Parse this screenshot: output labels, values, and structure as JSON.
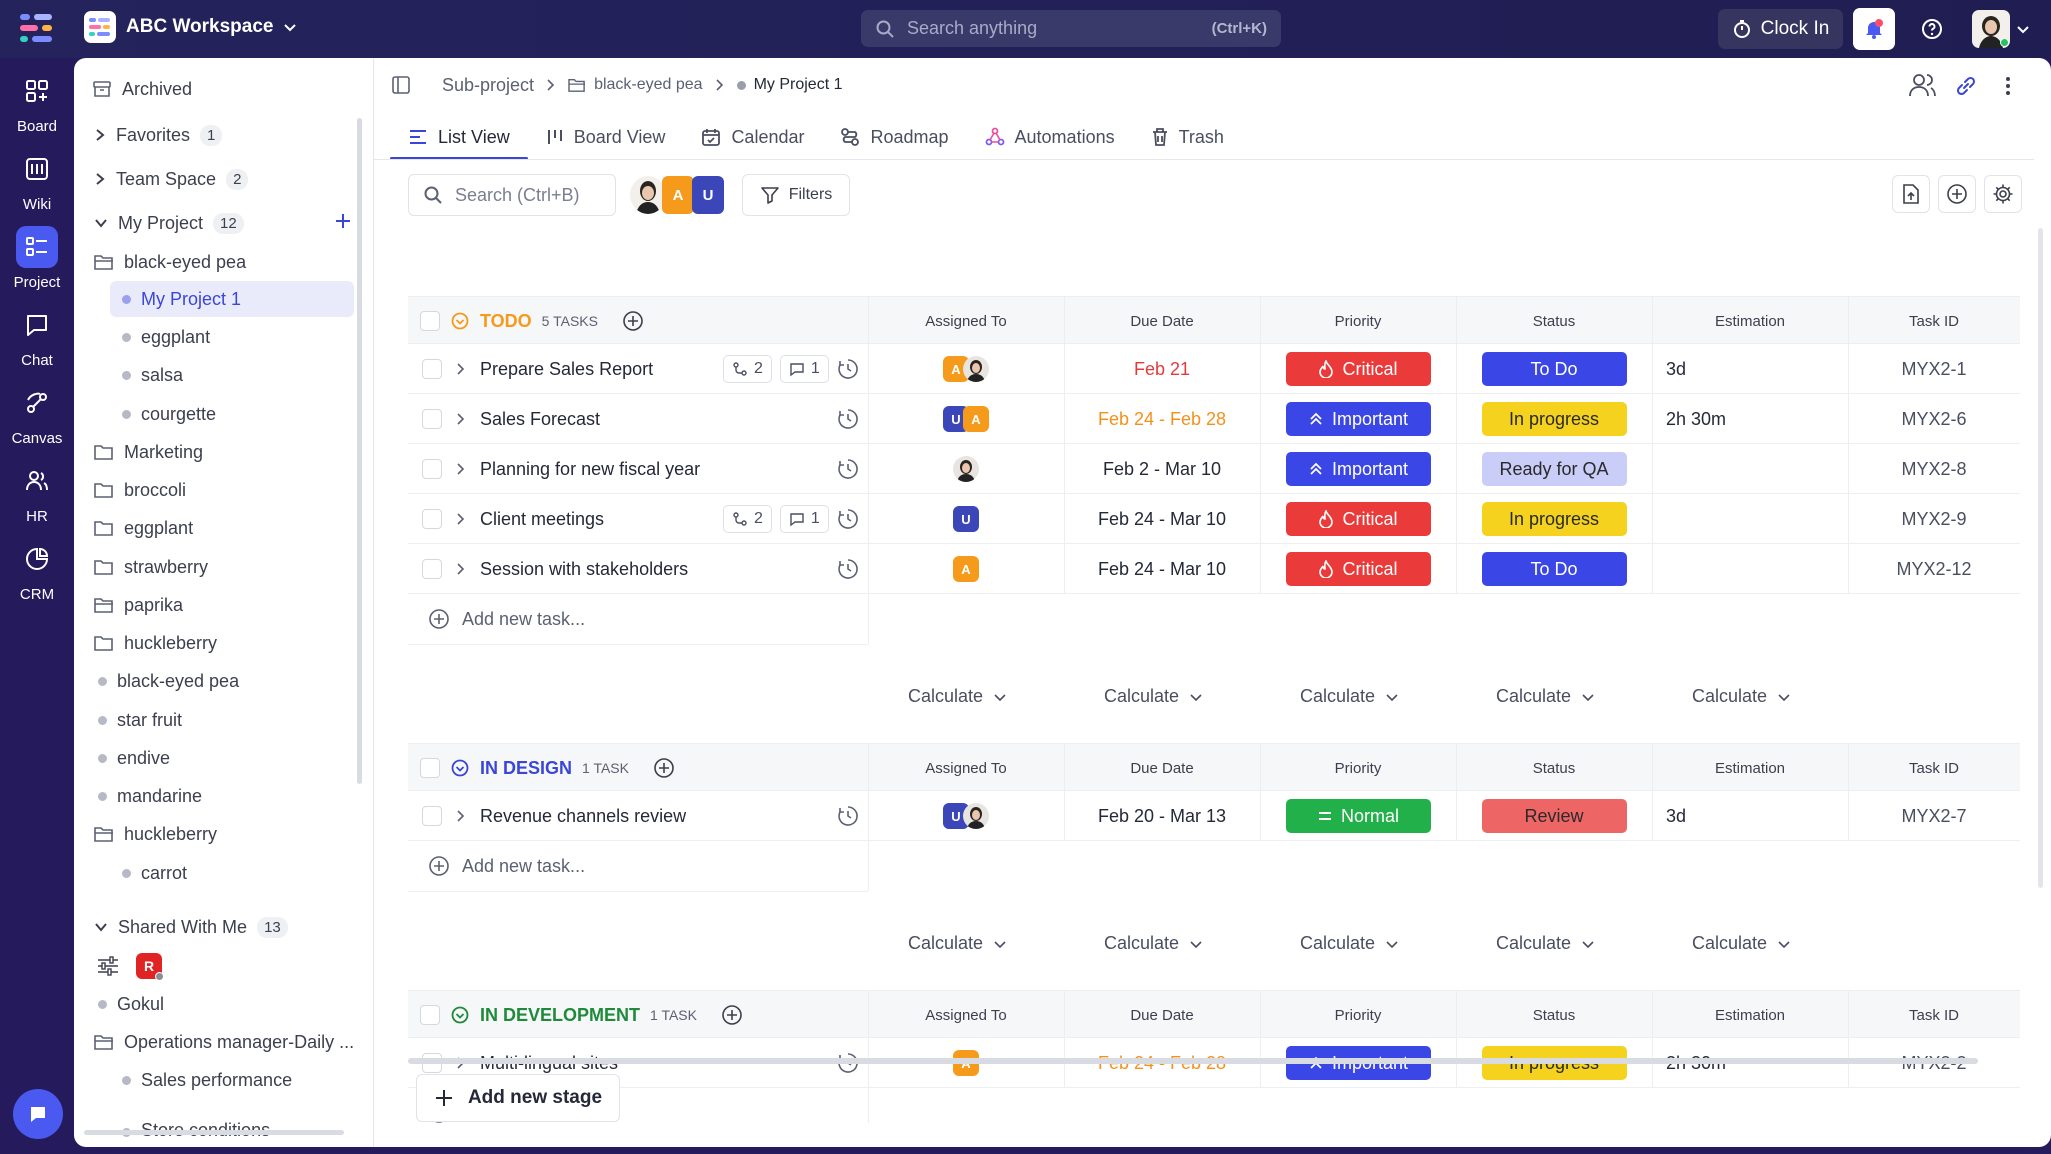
{
  "topbar": {
    "workspace": "ABC Workspace",
    "search_placeholder": "Search anything",
    "search_shortcut": "(Ctrl+K)",
    "clock_in": "Clock In"
  },
  "rail": [
    {
      "label": "Board"
    },
    {
      "label": "Wiki"
    },
    {
      "label": "Project"
    },
    {
      "label": "Chat"
    },
    {
      "label": "Canvas"
    },
    {
      "label": "HR"
    },
    {
      "label": "CRM"
    }
  ],
  "sidebar": {
    "archived": "Archived",
    "favorites": {
      "label": "Favorites",
      "count": "1"
    },
    "team_space": {
      "label": "Team Space",
      "count": "2"
    },
    "my_project": {
      "label": "My Project",
      "count": "12"
    },
    "items": [
      "black-eyed pea",
      "My Project 1",
      "eggplant",
      "salsa",
      "courgette",
      "Marketing",
      "broccoli",
      "eggplant",
      "strawberry",
      "paprika",
      "huckleberry",
      "black-eyed pea",
      "star fruit",
      "endive",
      "mandarine",
      "huckleberry",
      "carrot"
    ],
    "shared": {
      "label": "Shared With Me",
      "count": "13"
    },
    "shared_avatar": "R",
    "shared_items": [
      "Gokul",
      "Operations manager-Daily ...",
      "Sales performance",
      "Store conditions"
    ]
  },
  "breadcrumb": {
    "root": "Sub-project",
    "folder": "black-eyed pea",
    "current": "My Project 1"
  },
  "tabs": [
    {
      "label": "List View"
    },
    {
      "label": "Board View"
    },
    {
      "label": "Calendar"
    },
    {
      "label": "Roadmap"
    },
    {
      "label": "Automations"
    },
    {
      "label": "Trash"
    }
  ],
  "toolbar": {
    "search_placeholder": "Search (Ctrl+B)",
    "filters": "Filters",
    "avatars": [
      "A",
      "U"
    ]
  },
  "columns": {
    "assigned": "Assigned To",
    "due": "Due Date",
    "priority": "Priority",
    "status": "Status",
    "estimation": "Estimation",
    "taskid": "Task ID"
  },
  "groups": [
    {
      "name": "TODO",
      "count": "5 TASKS",
      "color": "#f59a1b",
      "tasks": [
        {
          "name": "Prepare Sales Report",
          "subtasks": "2",
          "comments": "1",
          "assignees": [
            "A",
            "photo"
          ],
          "due": "Feb 21",
          "due_color": "#e23b3b",
          "priority": "Critical",
          "status": "To Do",
          "estimation": "3d",
          "id": "MYX2-1"
        },
        {
          "name": "Sales Forecast",
          "subtasks": "",
          "comments": "",
          "assignees": [
            "U",
            "A"
          ],
          "due": "Feb 24 - Feb 28",
          "due_color": "#f5901b",
          "priority": "Important",
          "status": "In progress",
          "estimation": "2h 30m",
          "id": "MYX2-6"
        },
        {
          "name": "Planning for new fiscal year",
          "subtasks": "",
          "comments": "",
          "assignees": [
            "photo"
          ],
          "due": "Feb 2 - Mar 10",
          "due_color": "#252838",
          "priority": "Important",
          "status": "Ready for QA",
          "estimation": "",
          "id": "MYX2-8"
        },
        {
          "name": "Client meetings",
          "subtasks": "2",
          "comments": "1",
          "assignees": [
            "U"
          ],
          "due": "Feb 24 - Mar 10",
          "due_color": "#252838",
          "priority": "Critical",
          "status": "In progress",
          "estimation": "",
          "id": "MYX2-9"
        },
        {
          "name": "Session with stakeholders",
          "subtasks": "",
          "comments": "",
          "assignees": [
            "A"
          ],
          "due": "Feb 24 - Mar 10",
          "due_color": "#252838",
          "priority": "Critical",
          "status": "To Do",
          "estimation": "",
          "id": "MYX2-12"
        }
      ]
    },
    {
      "name": "IN DESIGN",
      "count": "1 TASK",
      "color": "#3b46d6",
      "tasks": [
        {
          "name": "Revenue channels review",
          "subtasks": "",
          "comments": "",
          "assignees": [
            "U",
            "photo"
          ],
          "due": "Feb 20 - Mar 13",
          "due_color": "#252838",
          "priority": "Normal",
          "status": "Review",
          "estimation": "3d",
          "id": "MYX2-7"
        }
      ]
    },
    {
      "name": "IN DEVELOPMENT",
      "count": "1 TASK",
      "color": "#1e8a3a",
      "tasks": [
        {
          "name": "Multi-lingual sites",
          "subtasks": "",
          "comments": "",
          "assignees": [
            "A"
          ],
          "due": "Feb 24 - Feb 28",
          "due_color": "#f5901b",
          "priority": "Important",
          "status": "In progress",
          "estimation": "2h 30m",
          "id": "MYX2-2"
        }
      ]
    }
  ],
  "add_task": "Add new task...",
  "calculate": "Calculate",
  "add_stage": "Add new stage"
}
